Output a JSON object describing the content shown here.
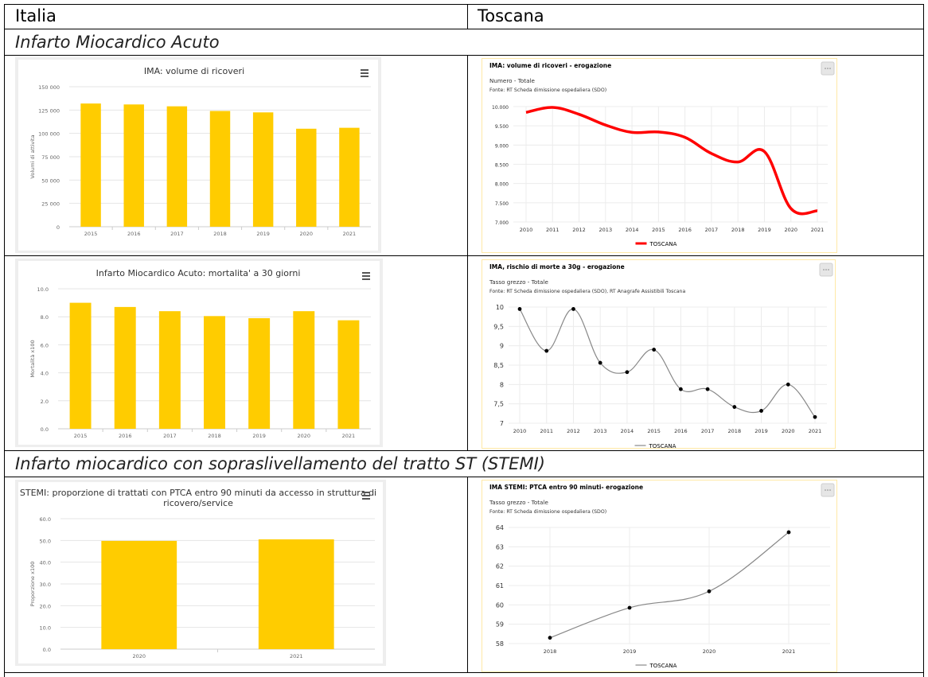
{
  "headers": {
    "left": "Italia",
    "right": "Toscana"
  },
  "sections": {
    "ima": "Infarto Miocardico Acuto",
    "stemi": "Infarto miocardico con sopraslivellamento del tratto ST (STEMI)"
  },
  "colors": {
    "bar": "#FFCC00",
    "red": "#FF0000",
    "gray": "#888888",
    "frame": "#FFE9A6"
  },
  "chart_data": [
    {
      "id": "italia-ima-volume",
      "type": "bar",
      "title": "IMA: volume di ricoveri",
      "ylabel": "Volumi di attivita",
      "categories": [
        "2015",
        "2016",
        "2017",
        "2018",
        "2019",
        "2020",
        "2021"
      ],
      "values": [
        132000,
        131000,
        129000,
        124000,
        122500,
        105000,
        106000
      ],
      "ylim": [
        0,
        150000
      ],
      "yticks": [
        "0",
        "25 000",
        "50 000",
        "75 000",
        "100 000",
        "125 000",
        "150 000"
      ],
      "menu_icon": "hamburger-menu-icon"
    },
    {
      "id": "toscana-ima-volume",
      "type": "line",
      "title": "IMA: volume di ricoveri - erogazione",
      "subtitle": "Numero - Totale",
      "source": "Fonte: RT Scheda dimissione ospedaliera (SDO)",
      "x": [
        "2010",
        "2011",
        "2012",
        "2013",
        "2014",
        "2015",
        "2016",
        "2017",
        "2018",
        "2019",
        "2020",
        "2021"
      ],
      "series": [
        {
          "name": "TOSCANA",
          "values": [
            9850,
            9980,
            9800,
            9520,
            9330,
            9340,
            9200,
            8780,
            8560,
            8830,
            7350,
            7290
          ]
        }
      ],
      "ylim": [
        7000,
        10000
      ],
      "yticks": [
        "7.000",
        "7.500",
        "8.000",
        "8.500",
        "9.000",
        "9.500",
        "10.000"
      ],
      "menu_icon": "ellipsis-icon"
    },
    {
      "id": "italia-ima-mortalita",
      "type": "bar",
      "title": "Infarto Miocardico Acuto: mortalita' a 30 giorni",
      "ylabel": "Mortalità x100",
      "categories": [
        "2015",
        "2016",
        "2017",
        "2018",
        "2019",
        "2020",
        "2021"
      ],
      "values": [
        9.0,
        8.7,
        8.4,
        8.05,
        7.9,
        8.4,
        7.75
      ],
      "ylim": [
        0,
        10
      ],
      "yticks": [
        "0.0",
        "2.0",
        "4.0",
        "6.0",
        "8.0",
        "10.0"
      ],
      "menu_icon": "hamburger-menu-icon"
    },
    {
      "id": "toscana-ima-rischio",
      "type": "line",
      "title": "IMA, rischio di morte a 30g - erogazione",
      "subtitle": "Tasso grezzo - Totale",
      "source": "Fonte: RT Scheda dimissione ospedaliera (SDO), RT Anagrafe Assistibili Toscana",
      "x": [
        "2010",
        "2011",
        "2012",
        "2013",
        "2014",
        "2015",
        "2016",
        "2017",
        "2018",
        "2019",
        "2020",
        "2021"
      ],
      "series": [
        {
          "name": "TOSCANA",
          "values": [
            9.95,
            8.87,
            9.95,
            8.56,
            8.32,
            8.9,
            7.88,
            7.88,
            7.42,
            7.32,
            8.0,
            7.16
          ]
        }
      ],
      "ylim": [
        7,
        10
      ],
      "yticks": [
        "7",
        "7,5",
        "8",
        "8,5",
        "9",
        "9,5",
        "10"
      ],
      "menu_icon": "ellipsis-icon"
    },
    {
      "id": "italia-stemi-ptca",
      "type": "bar",
      "title_line1": "STEMI: proporzione di trattati con PTCA entro 90 minuti da accesso in struttura di",
      "title_line2": "ricovero/service",
      "ylabel": "Proporzione x100",
      "categories": [
        "2020",
        "2021"
      ],
      "values": [
        49.8,
        50.5
      ],
      "ylim": [
        0,
        60
      ],
      "yticks": [
        "0.0",
        "10.0",
        "20.0",
        "30.0",
        "40.0",
        "50.0",
        "60.0"
      ],
      "menu_icon": "hamburger-menu-icon"
    },
    {
      "id": "toscana-stemi-ptca",
      "type": "line",
      "title": "IMA STEMI: PTCA entro 90 minuti- erogazione",
      "subtitle": "Tasso grezzo - Totale",
      "source": "Fonte: RT Scheda dimissione ospedaliera (SDO)",
      "x": [
        "2018",
        "2019",
        "2020",
        "2021"
      ],
      "series": [
        {
          "name": "TOSCANA",
          "values": [
            58.3,
            59.85,
            60.7,
            63.75
          ]
        }
      ],
      "ylim": [
        58,
        64
      ],
      "yticks": [
        "58",
        "59",
        "60",
        "61",
        "62",
        "63",
        "64"
      ],
      "menu_icon": "ellipsis-icon"
    }
  ]
}
